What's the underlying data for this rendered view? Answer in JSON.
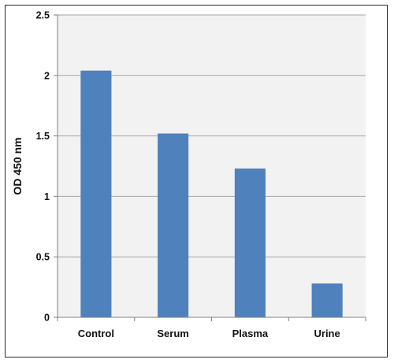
{
  "chart_data": {
    "type": "bar",
    "title": "",
    "xlabel": "",
    "ylabel": "OD 450 nm",
    "categories": [
      "Control",
      "Serum",
      "Plasma",
      "Urine"
    ],
    "values": [
      2.04,
      1.52,
      1.23,
      0.28
    ],
    "ylim": [
      0,
      2.5
    ],
    "yticks": [
      0,
      0.5,
      1,
      1.5,
      2,
      2.5
    ],
    "ytick_labels": [
      "0",
      "0.5",
      "1",
      "1.5",
      "2",
      "2.5"
    ],
    "grid": true,
    "legend": "none",
    "bar_color": "#4F81BD",
    "gridline_color": "#A6A6A6",
    "plot_background": "#F2F2F2"
  }
}
